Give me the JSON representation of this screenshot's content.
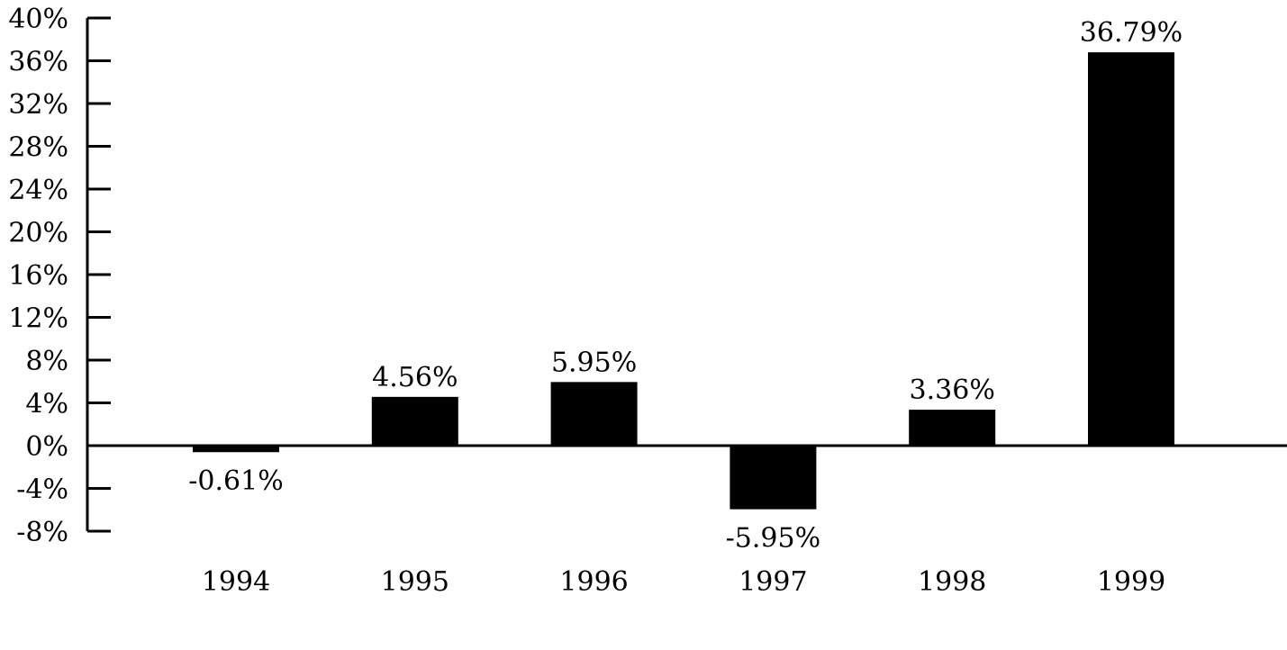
{
  "chart_data": {
    "type": "bar",
    "title": "",
    "xlabel": "",
    "ylabel": "",
    "categories": [
      "1994",
      "1995",
      "1996",
      "1997",
      "1998",
      "1999"
    ],
    "values": [
      -0.61,
      4.56,
      5.95,
      -5.95,
      3.36,
      36.79
    ],
    "value_labels": [
      "-0.61%",
      "4.56%",
      "5.95%",
      "-5.95%",
      "3.36%",
      "36.79%"
    ],
    "ylim": [
      -8,
      40
    ],
    "yticks": [
      40,
      36,
      32,
      28,
      24,
      20,
      16,
      12,
      8,
      4,
      0,
      -4,
      -8
    ],
    "ytick_labels": [
      "40%",
      "36%",
      "32%",
      "28%",
      "24%",
      "20%",
      "16%",
      "12%",
      "8%",
      "4%",
      "0%",
      "-4%",
      "-8%"
    ],
    "grid": false,
    "legend": "none",
    "bar_color": "#000000"
  }
}
